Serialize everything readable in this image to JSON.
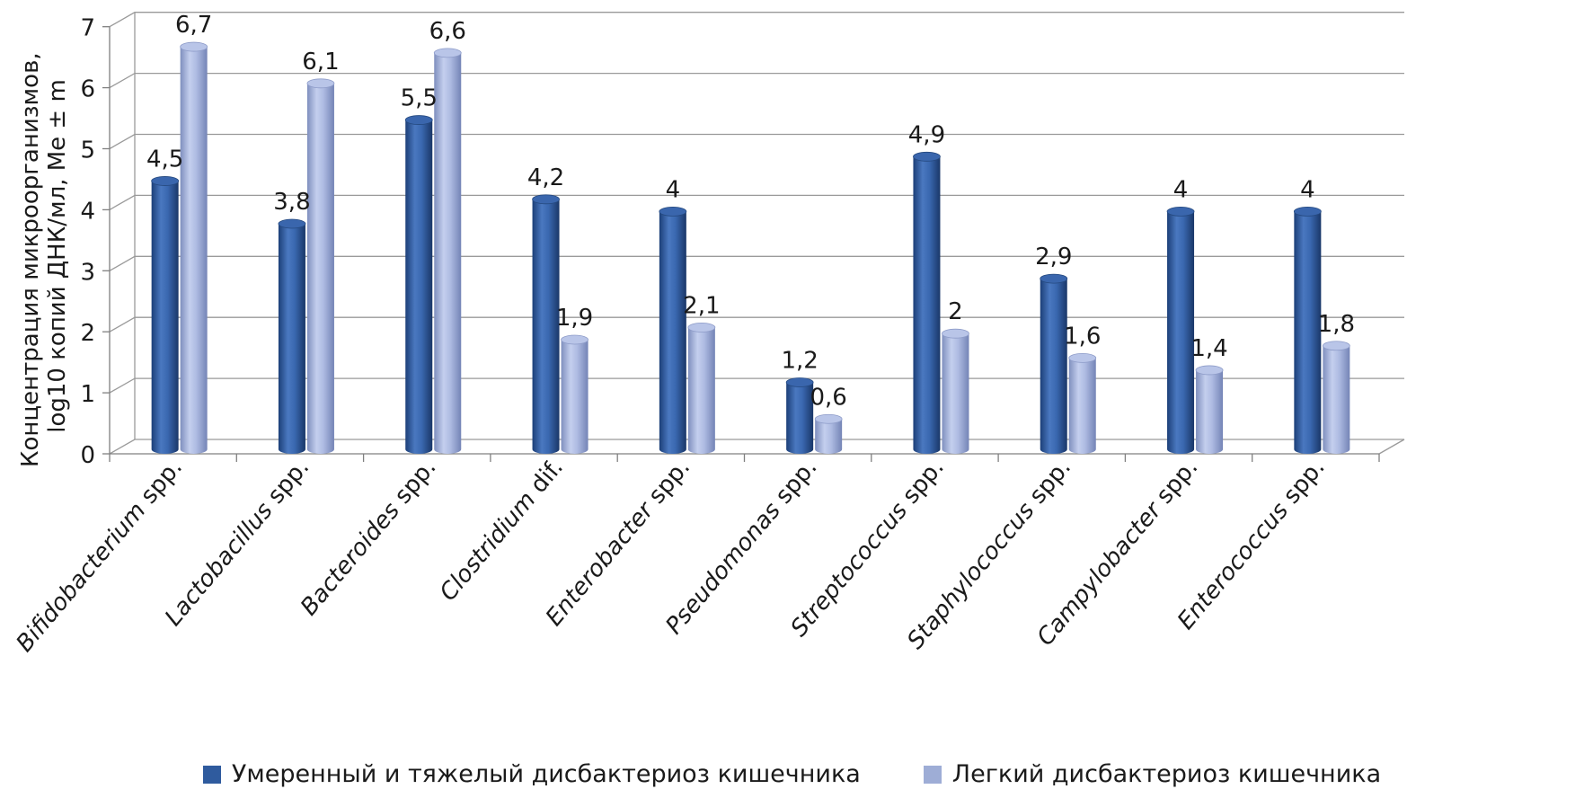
{
  "chart_data": {
    "type": "bar",
    "ylabel": [
      "Концентрация микроорганизмов,",
      "log10 копий ДНК/мл, Me ± m"
    ],
    "ylim": [
      0,
      7
    ],
    "yticks": [
      "0",
      "1",
      "2",
      "3",
      "4",
      "5",
      "6",
      "7"
    ],
    "grid": true,
    "legend_position": "bottom",
    "categories": [
      {
        "name": "Bifidobacterium",
        "suffix": " spp."
      },
      {
        "name": "Lactobacillus",
        "suffix": " spp."
      },
      {
        "name": "Bacteroides",
        "suffix": " spp."
      },
      {
        "name": "Clostridium",
        "suffix": " dif."
      },
      {
        "name": "Enterobacter",
        "suffix": " spp."
      },
      {
        "name": "Pseudomonas",
        "suffix": " spp."
      },
      {
        "name": "Streptococcus",
        "suffix": " spp."
      },
      {
        "name": "Staphylococcus",
        "suffix": " spp."
      },
      {
        "name": "Campylobacter",
        "suffix": " spp."
      },
      {
        "name": "Enterococcus",
        "suffix": " spp."
      }
    ],
    "series": [
      {
        "name": "Умеренный и тяжелый дисбактериоз кишечника",
        "color": "#2f5b9e",
        "values": [
          4.5,
          3.8,
          5.5,
          4.2,
          4,
          1.2,
          4.9,
          2.9,
          4,
          4
        ],
        "labels": [
          "4,5",
          "3,8",
          "5,5",
          "4,2",
          "4",
          "1,2",
          "4,9",
          "2,9",
          "4",
          "4"
        ]
      },
      {
        "name": "Легкий дисбактериоз кишечника",
        "color": "#9eadd6",
        "values": [
          6.7,
          6.1,
          6.6,
          1.9,
          2.1,
          0.6,
          2,
          1.6,
          1.4,
          1.8
        ],
        "labels": [
          "6,7",
          "6,1",
          "6,6",
          "1,9",
          "2,1",
          "0,6",
          "2",
          "1,6",
          "1,4",
          "1,8"
        ]
      }
    ]
  }
}
